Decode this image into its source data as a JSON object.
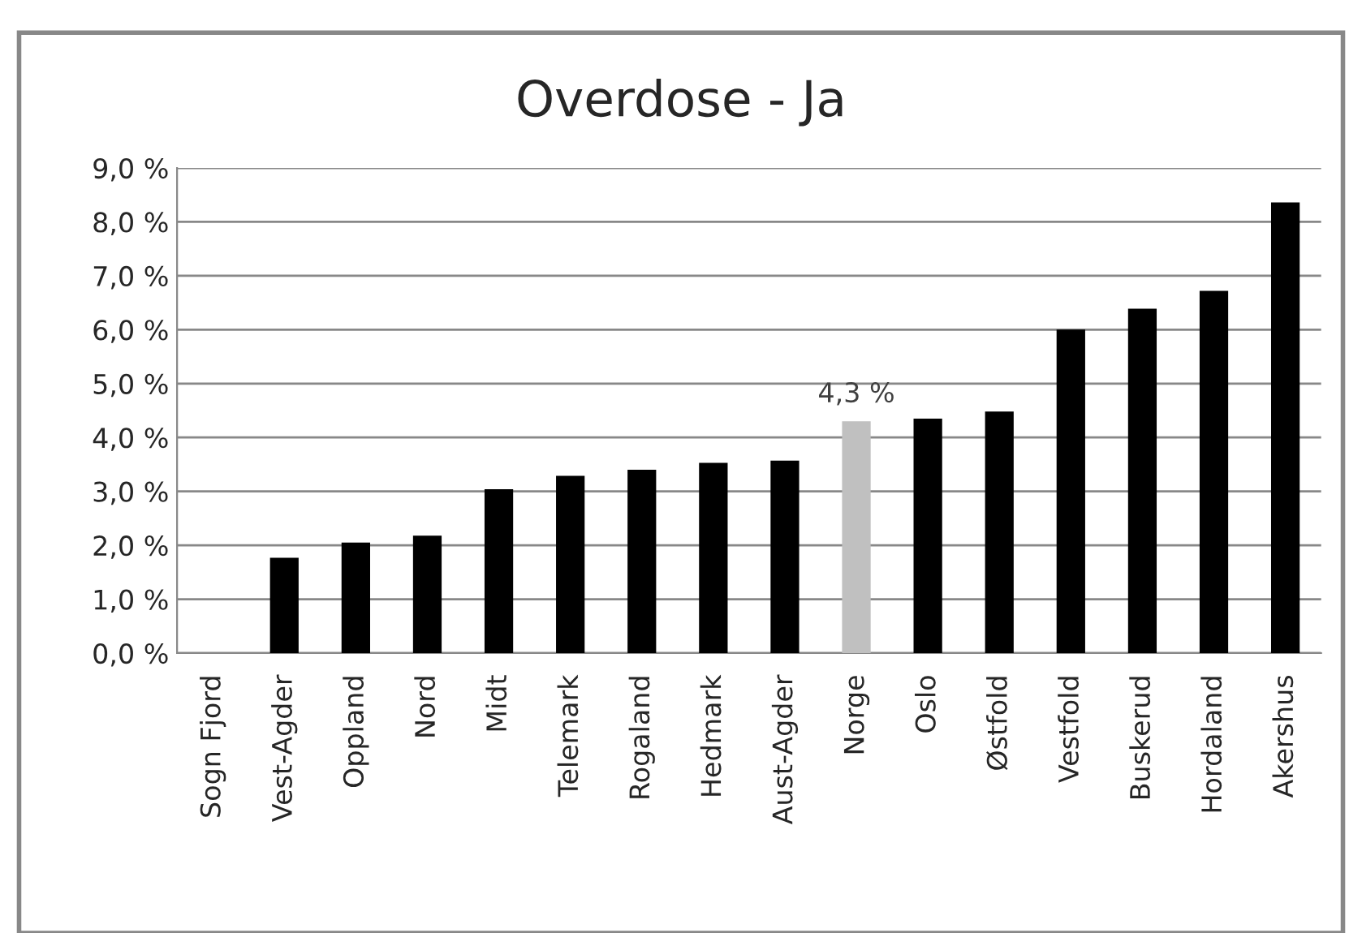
{
  "chart_data": {
    "type": "bar",
    "title": "Overdose - Ja",
    "categories": [
      "Sogn Fjord",
      "Vest-Agder",
      "Oppland",
      "Nord",
      "Midt",
      "Telemark",
      "Rogaland",
      "Hedmark",
      "Aust-Agder",
      "Norge",
      "Oslo",
      "Østfold",
      "Vestfold",
      "Buskerud",
      "Hordaland",
      "Akershus"
    ],
    "values": [
      null,
      1.77,
      2.05,
      2.18,
      3.04,
      3.29,
      3.4,
      3.53,
      3.57,
      4.3,
      4.35,
      4.48,
      6.0,
      6.39,
      6.72,
      8.36
    ],
    "colors": [
      "#000000",
      "#000000",
      "#000000",
      "#000000",
      "#000000",
      "#000000",
      "#000000",
      "#000000",
      "#000000",
      "#c0c0c0",
      "#000000",
      "#000000",
      "#000000",
      "#000000",
      "#000000",
      "#000000"
    ],
    "value_labels": [
      null,
      null,
      null,
      null,
      null,
      null,
      null,
      null,
      null,
      "4,3 %",
      null,
      null,
      null,
      null,
      null,
      null
    ],
    "ylim": [
      0,
      9
    ],
    "yticks": [
      {
        "value": 0,
        "label": "0,0 %"
      },
      {
        "value": 1,
        "label": "1,0 %"
      },
      {
        "value": 2,
        "label": "2,0 %"
      },
      {
        "value": 3,
        "label": "3,0 %"
      },
      {
        "value": 4,
        "label": "4,0 %"
      },
      {
        "value": 5,
        "label": "5,0 %"
      },
      {
        "value": 6,
        "label": "6,0 %"
      },
      {
        "value": 7,
        "label": "7,0 %"
      },
      {
        "value": 8,
        "label": "8,0 %"
      },
      {
        "value": 9,
        "label": "9,0 %"
      }
    ],
    "grid": "y",
    "legend": false
  }
}
